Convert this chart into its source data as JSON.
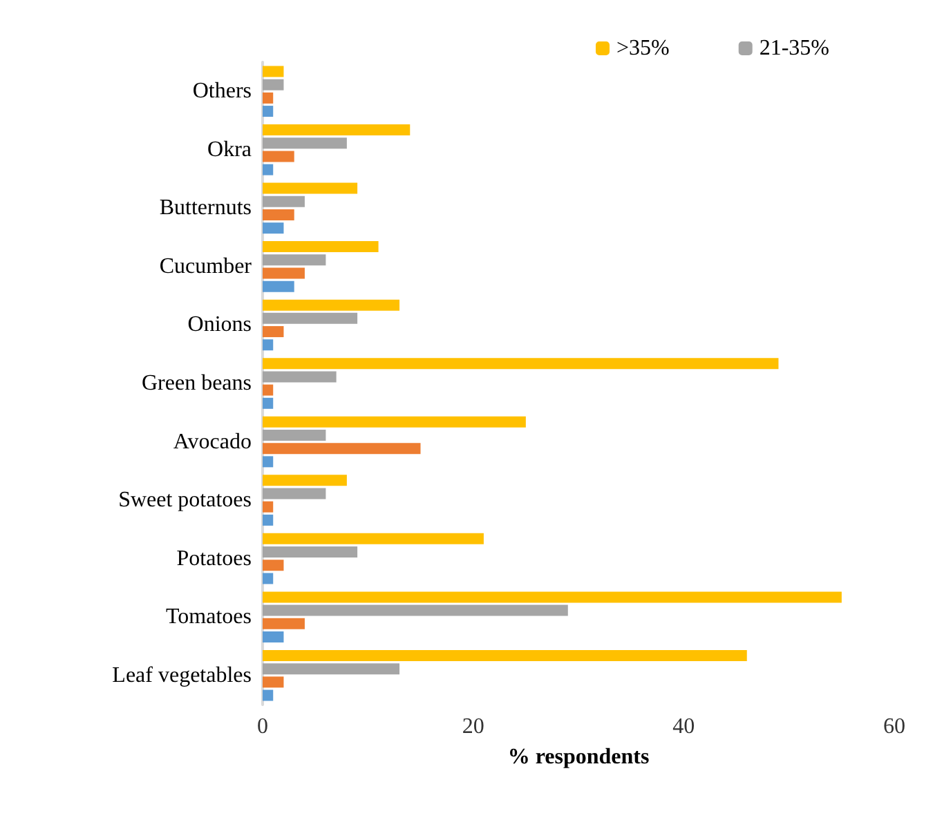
{
  "chart_data": {
    "type": "bar",
    "orientation": "horizontal",
    "xlabel": "% respondents",
    "categories": [
      "Others",
      "Okra",
      "Butternuts",
      "Cucumber",
      "Onions",
      "Green beans",
      "Avocado",
      "Sweet potatoes",
      "Potatoes",
      "Tomatoes",
      "Leaf vegetables"
    ],
    "series": [
      {
        "name": ">35%",
        "color": "#ffc000",
        "values": [
          2,
          14,
          9,
          11,
          13,
          49,
          25,
          8,
          21,
          55,
          46
        ]
      },
      {
        "name": "21-35%",
        "color": "#a5a5a5",
        "values": [
          2,
          8,
          4,
          6,
          9,
          7,
          6,
          6,
          9,
          29,
          13
        ]
      },
      {
        "color": "#ed7d31",
        "values": [
          1,
          3,
          3,
          4,
          2,
          1,
          15,
          1,
          2,
          4,
          2
        ]
      },
      {
        "color": "#5b9bd5",
        "values": [
          1,
          1,
          2,
          3,
          1,
          1,
          1,
          1,
          1,
          2,
          1
        ]
      }
    ],
    "xlim": [
      0,
      60
    ],
    "xticks": [
      0,
      20,
      40,
      60
    ],
    "grid": false,
    "legend": "top right"
  }
}
